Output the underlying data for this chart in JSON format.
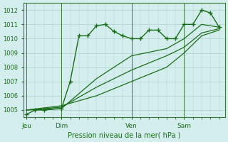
{
  "title": "Pression niveau de la mer( hPa )",
  "ylabel_ticks": [
    1005,
    1006,
    1007,
    1008,
    1009,
    1010,
    1011,
    1012
  ],
  "ylim": [
    1004.5,
    1012.5
  ],
  "xlim": [
    -1,
    68
  ],
  "background_color": "#d4eeee",
  "grid_color": "#b0d0d0",
  "line_color": "#1a6e1a",
  "day_labels": [
    "Jeu",
    "Dim",
    "Ven",
    "Sam"
  ],
  "day_positions": [
    0,
    12,
    36,
    54
  ],
  "line1_x": [
    0,
    3,
    6,
    12,
    15,
    18,
    21,
    24,
    27,
    30,
    33,
    36,
    39,
    42,
    45,
    48,
    51,
    54,
    57,
    60,
    63,
    66
  ],
  "line1_y": [
    1004.7,
    1005.0,
    1005.0,
    1005.1,
    1007.0,
    1010.2,
    1010.2,
    1010.9,
    1011.0,
    1010.5,
    1010.2,
    1010.0,
    1010.0,
    1010.6,
    1010.6,
    1010.0,
    1010.0,
    1011.0,
    1011.0,
    1012.0,
    1011.8,
    1010.8
  ],
  "line2_x": [
    0,
    12,
    24,
    36,
    48,
    54,
    60,
    66
  ],
  "line2_y": [
    1005.0,
    1005.1,
    1007.2,
    1008.8,
    1009.3,
    1010.0,
    1011.0,
    1010.8
  ],
  "line3_x": [
    0,
    12,
    24,
    36,
    48,
    54,
    60,
    66
  ],
  "line3_y": [
    1005.0,
    1005.2,
    1006.6,
    1007.8,
    1008.8,
    1009.4,
    1010.4,
    1010.7
  ],
  "line4_x": [
    0,
    12,
    24,
    36,
    48,
    54,
    60,
    66
  ],
  "line4_y": [
    1005.0,
    1005.3,
    1006.0,
    1007.0,
    1008.0,
    1009.0,
    1010.2,
    1010.6
  ]
}
